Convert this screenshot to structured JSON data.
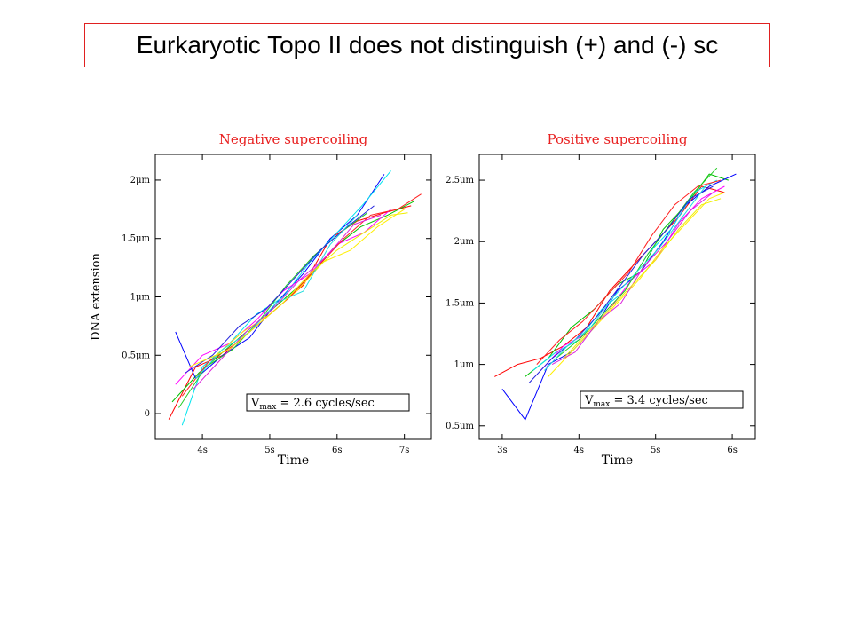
{
  "slide": {
    "title": "Eurkaryotic Topo II does not distinguish (+) and (-) sc"
  },
  "chart_data": [
    {
      "type": "line",
      "title": "Negative supercoiling",
      "xlabel": "Time",
      "ylabel": "DNA extension",
      "x_ticks": [
        {
          "value": 4,
          "label": "4s"
        },
        {
          "value": 5,
          "label": "5s"
        },
        {
          "value": 6,
          "label": "6s"
        },
        {
          "value": 7,
          "label": "7s"
        }
      ],
      "y_ticks": [
        {
          "value": 0,
          "label": "0"
        },
        {
          "value": 0.5,
          "label": "0.5μm"
        },
        {
          "value": 1,
          "label": "1μm"
        },
        {
          "value": 1.5,
          "label": "1.5μm"
        },
        {
          "value": 2,
          "label": "2μm"
        }
      ],
      "xlim": [
        3.3,
        7.4
      ],
      "ylim": [
        -0.22,
        2.22
      ],
      "annotation": {
        "base": "V",
        "sub": "max",
        "rest": " = 2.6 cycles/sec"
      },
      "colors": [
        "#ff0000",
        "#00c000",
        "#0000ff",
        "#00e5ee",
        "#ff00ff",
        "#ffee00",
        "#ff2020",
        "#22cc22",
        "#2222dd",
        "#20dddd",
        "#dd22dd",
        "#eeee00"
      ],
      "series": [
        {
          "x": [
            3.5,
            3.9,
            4.3,
            4.7,
            5.1,
            5.5,
            5.9,
            6.3,
            6.7,
            7.1
          ],
          "y": [
            -0.05,
            0.4,
            0.5,
            0.7,
            0.9,
            1.1,
            1.5,
            1.65,
            1.72,
            1.78
          ]
        },
        {
          "x": [
            3.55,
            3.95,
            4.35,
            4.75,
            5.15,
            5.55,
            5.95,
            6.35,
            6.75,
            7.15
          ],
          "y": [
            0.1,
            0.35,
            0.55,
            0.75,
            0.95,
            1.15,
            1.42,
            1.6,
            1.7,
            1.82
          ]
        },
        {
          "x": [
            3.6,
            3.9,
            4.3,
            4.7,
            5.1,
            5.5,
            5.9,
            6.3,
            6.7
          ],
          "y": [
            0.7,
            0.3,
            0.5,
            0.65,
            0.95,
            1.2,
            1.5,
            1.7,
            2.05
          ]
        },
        {
          "x": [
            3.7,
            4.0,
            4.4,
            4.8,
            5.2,
            5.6,
            6.0,
            6.4,
            6.8
          ],
          "y": [
            -0.1,
            0.4,
            0.6,
            0.85,
            1.0,
            1.3,
            1.55,
            1.8,
            2.08
          ]
        },
        {
          "x": [
            3.6,
            4.0,
            4.4,
            4.8,
            5.2,
            5.6,
            6.0,
            6.4,
            6.8
          ],
          "y": [
            0.25,
            0.5,
            0.6,
            0.8,
            1.05,
            1.2,
            1.45,
            1.55,
            1.75
          ]
        },
        {
          "x": [
            3.8,
            4.2,
            4.6,
            5.0,
            5.4,
            5.8,
            6.2,
            6.6,
            7.0
          ],
          "y": [
            0.4,
            0.5,
            0.7,
            0.85,
            1.05,
            1.3,
            1.4,
            1.6,
            1.75
          ]
        },
        {
          "x": [
            3.7,
            4.1,
            4.5,
            4.9,
            5.3,
            5.7,
            6.1,
            6.5,
            6.9,
            7.25
          ],
          "y": [
            0.15,
            0.45,
            0.6,
            0.8,
            1.0,
            1.25,
            1.5,
            1.7,
            1.75,
            1.88
          ]
        },
        {
          "x": [
            3.65,
            4.05,
            4.45,
            4.85,
            5.25,
            5.65,
            6.05,
            6.45
          ],
          "y": [
            0.05,
            0.4,
            0.55,
            0.8,
            1.1,
            1.35,
            1.55,
            1.72
          ]
        },
        {
          "x": [
            3.75,
            4.15,
            4.55,
            4.95,
            5.35,
            5.75,
            6.15,
            6.55
          ],
          "y": [
            0.35,
            0.5,
            0.75,
            0.9,
            1.15,
            1.4,
            1.6,
            1.78
          ]
        },
        {
          "x": [
            3.9,
            4.3,
            4.7,
            5.1,
            5.5,
            5.9,
            6.3
          ],
          "y": [
            0.3,
            0.55,
            0.7,
            0.95,
            1.05,
            1.45,
            1.7
          ]
        },
        {
          "x": [
            3.85,
            4.25,
            4.65,
            5.05,
            5.45,
            5.85,
            6.25,
            6.65
          ],
          "y": [
            0.2,
            0.45,
            0.7,
            0.9,
            1.15,
            1.35,
            1.62,
            1.7
          ]
        },
        {
          "x": [
            4.0,
            4.4,
            4.8,
            5.2,
            5.6,
            6.0,
            6.4,
            6.8,
            7.05
          ],
          "y": [
            0.45,
            0.55,
            0.75,
            0.95,
            1.2,
            1.4,
            1.55,
            1.7,
            1.72
          ]
        }
      ]
    },
    {
      "type": "line",
      "title": "Positive supercoiling",
      "xlabel": "Time",
      "ylabel": "",
      "x_ticks": [
        {
          "value": 3,
          "label": "3s"
        },
        {
          "value": 4,
          "label": "4s"
        },
        {
          "value": 5,
          "label": "5s"
        },
        {
          "value": 6,
          "label": "6s"
        }
      ],
      "y_ticks": [
        {
          "value": 0.5,
          "label": "0.5μm"
        },
        {
          "value": 1,
          "label": "1μm"
        },
        {
          "value": 1.5,
          "label": "1.5μm"
        },
        {
          "value": 2,
          "label": "2μm"
        },
        {
          "value": 2.5,
          "label": "2.5μm"
        }
      ],
      "xlim": [
        2.7,
        6.3
      ],
      "ylim": [
        0.39,
        2.71
      ],
      "annotation": {
        "base": "V",
        "sub": "max",
        "rest": " = 3.4 cycles/sec"
      },
      "colors": [
        "#ff0000",
        "#00c000",
        "#0000ff",
        "#00e5ee",
        "#ff00ff",
        "#ffee00",
        "#ff2020",
        "#22cc22",
        "#2222dd",
        "#20dddd",
        "#dd22dd",
        "#eeee00"
      ],
      "series": [
        {
          "x": [
            2.9,
            3.2,
            3.5,
            3.8,
            4.1,
            4.4,
            4.7,
            5.0,
            5.3,
            5.6,
            5.9
          ],
          "y": [
            0.9,
            1.0,
            1.05,
            1.15,
            1.3,
            1.6,
            1.8,
            2.0,
            2.2,
            2.45,
            2.4
          ]
        },
        {
          "x": [
            3.3,
            3.6,
            3.9,
            4.2,
            4.5,
            4.8,
            5.1,
            5.4,
            5.7,
            5.95
          ],
          "y": [
            0.9,
            1.05,
            1.3,
            1.45,
            1.65,
            1.75,
            2.1,
            2.3,
            2.55,
            2.5
          ]
        },
        {
          "x": [
            3.0,
            3.3,
            3.6,
            3.9,
            4.2,
            4.5,
            4.8,
            5.1,
            5.4,
            5.7,
            6.05
          ],
          "y": [
            0.8,
            0.55,
            1.0,
            1.1,
            1.3,
            1.6,
            1.75,
            2.0,
            2.3,
            2.45,
            2.55
          ]
        },
        {
          "x": [
            3.4,
            3.7,
            4.0,
            4.3,
            4.6,
            4.9,
            5.2,
            5.5,
            5.8
          ],
          "y": [
            0.95,
            1.1,
            1.2,
            1.45,
            1.6,
            1.9,
            2.1,
            2.4,
            2.5
          ]
        },
        {
          "x": [
            3.5,
            3.8,
            4.1,
            4.4,
            4.7,
            5.0,
            5.3,
            5.6,
            5.9
          ],
          "y": [
            0.95,
            1.15,
            1.25,
            1.45,
            1.7,
            1.85,
            2.15,
            2.35,
            2.45
          ]
        },
        {
          "x": [
            3.6,
            3.9,
            4.2,
            4.5,
            4.8,
            5.1,
            5.4,
            5.7,
            5.9
          ],
          "y": [
            0.9,
            1.1,
            1.3,
            1.5,
            1.7,
            1.95,
            2.15,
            2.35,
            2.4
          ]
        },
        {
          "x": [
            3.45,
            3.75,
            4.05,
            4.35,
            4.65,
            4.95,
            5.25,
            5.55,
            5.85
          ],
          "y": [
            1.0,
            1.2,
            1.35,
            1.55,
            1.75,
            2.05,
            2.3,
            2.45,
            2.5
          ]
        },
        {
          "x": [
            3.7,
            4.0,
            4.3,
            4.6,
            4.9,
            5.2,
            5.5,
            5.8
          ],
          "y": [
            1.05,
            1.2,
            1.4,
            1.6,
            1.9,
            2.15,
            2.4,
            2.6
          ]
        },
        {
          "x": [
            3.35,
            3.65,
            3.95,
            4.25,
            4.55,
            4.85,
            5.15,
            5.45,
            5.75
          ],
          "y": [
            0.85,
            1.05,
            1.2,
            1.4,
            1.65,
            1.9,
            2.1,
            2.35,
            2.45
          ]
        },
        {
          "x": [
            3.55,
            3.85,
            4.15,
            4.45,
            4.75,
            5.05,
            5.35,
            5.65
          ],
          "y": [
            0.95,
            1.15,
            1.3,
            1.55,
            1.75,
            1.95,
            2.2,
            2.45
          ]
        },
        {
          "x": [
            3.65,
            3.95,
            4.25,
            4.55,
            4.85,
            5.15,
            5.45,
            5.75
          ],
          "y": [
            1.0,
            1.1,
            1.35,
            1.5,
            1.8,
            2.0,
            2.25,
            2.4
          ]
        },
        {
          "x": [
            3.8,
            4.1,
            4.4,
            4.7,
            5.0,
            5.3,
            5.6,
            5.85
          ],
          "y": [
            1.05,
            1.25,
            1.45,
            1.65,
            1.85,
            2.1,
            2.3,
            2.35
          ]
        }
      ]
    }
  ]
}
